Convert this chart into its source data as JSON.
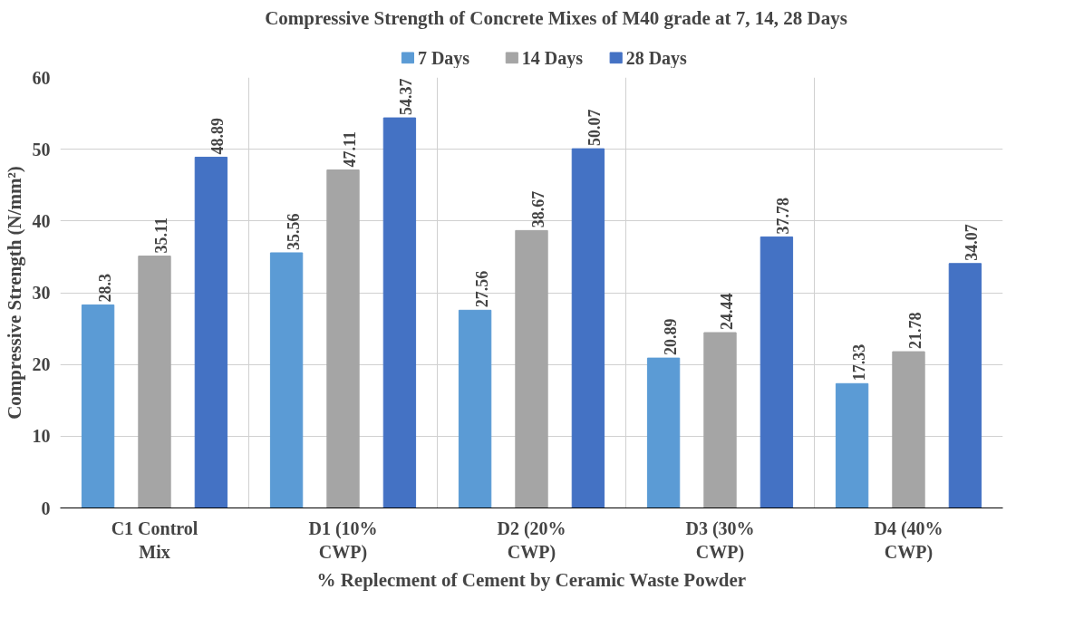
{
  "chart_data": {
    "type": "bar",
    "title": "Compressive Strength of Concrete Mixes of M40 grade at 7, 14, 28 Days",
    "xlabel": "% Replecment of Cement by Ceramic Waste Powder",
    "ylabel": "Compressive Strength (N/mm²)",
    "categories": [
      "C1 Control Mix",
      "D1 (10% CWP)",
      "D2 (20% CWP)",
      "D3 (30% CWP)",
      "D4 (40% CWP)"
    ],
    "series": [
      {
        "name": "7 Days",
        "color": "#5b9bd5",
        "values": [
          28.3,
          35.56,
          27.56,
          20.89,
          17.33
        ]
      },
      {
        "name": "14 Days",
        "color": "#a5a5a5",
        "values": [
          35.11,
          47.11,
          38.67,
          24.44,
          21.78
        ]
      },
      {
        "name": "28 Days",
        "color": "#4472c4",
        "values": [
          48.89,
          54.37,
          50.07,
          37.78,
          34.07
        ]
      }
    ],
    "ylim": [
      0,
      60
    ],
    "yticks": [
      0,
      10,
      20,
      30,
      40,
      50,
      60
    ],
    "grid": true,
    "legend": "top",
    "data_labels": true
  }
}
